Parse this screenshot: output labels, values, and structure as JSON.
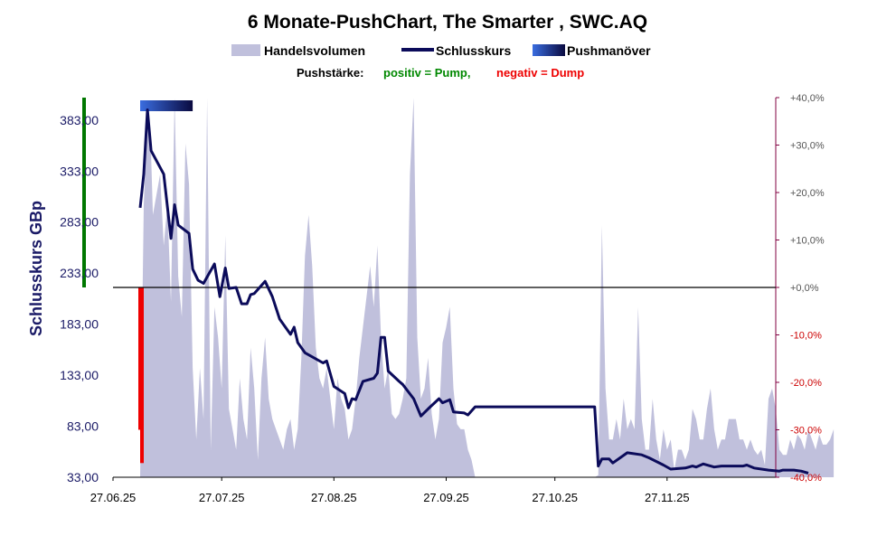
{
  "chart_data": {
    "type": "line",
    "title": "6 Monate-PushChart, The Smarter , SWC.AQ",
    "legend": {
      "volume": "Handelsvolumen",
      "close": "Schlusskurs",
      "push": "Pushmanöver"
    },
    "push_strength": {
      "prefix": "Pushstärke:",
      "positive": "positiv = Pump,",
      "negative": "negativ = Dump"
    },
    "ylabel": "Schlusskurs GBp",
    "y_left": {
      "min": 33,
      "max": 405,
      "ticks": [
        "33,00",
        "83,00",
        "133,00",
        "183,00",
        "233,00",
        "283,00",
        "333,00",
        "383,00"
      ]
    },
    "y_right": {
      "min": -40,
      "max": 40,
      "ticks": [
        {
          "label": "+40,0%",
          "value": 40
        },
        {
          "label": "+30,0%",
          "value": 30
        },
        {
          "label": "+20,0%",
          "value": 20
        },
        {
          "label": "+10,0%",
          "value": 10
        },
        {
          "label": "+0,0%",
          "value": 0
        },
        {
          "label": "-10,0%",
          "value": -10
        },
        {
          "label": "-20,0%",
          "value": -20
        },
        {
          "label": "-30,0%",
          "value": -30
        },
        {
          "label": "-40,0%",
          "value": -40
        }
      ]
    },
    "x_ticks": [
      {
        "label": "27.06.25",
        "day": 0
      },
      {
        "label": "27.07.25",
        "day": 30
      },
      {
        "label": "27.08.25",
        "day": 61
      },
      {
        "label": "27.09.25",
        "day": 92
      },
      {
        "label": "27.10.25",
        "day": 122
      },
      {
        "label": "27.11.25",
        "day": 153
      }
    ],
    "x_range_days": [
      0,
      183
    ],
    "close_series": [
      [
        7.5,
        297
      ],
      [
        8.5,
        330
      ],
      [
        9.5,
        393
      ],
      [
        10.5,
        353
      ],
      [
        14,
        330
      ],
      [
        16,
        267
      ],
      [
        17,
        300
      ],
      [
        18,
        280
      ],
      [
        21,
        272
      ],
      [
        22,
        237
      ],
      [
        23.5,
        226
      ],
      [
        25,
        223
      ],
      [
        28,
        242
      ],
      [
        29.5,
        210
      ],
      [
        31,
        238
      ],
      [
        32,
        218
      ],
      [
        34,
        219
      ],
      [
        35.5,
        203
      ],
      [
        37,
        203
      ],
      [
        38,
        212
      ],
      [
        39,
        213
      ],
      [
        42,
        225
      ],
      [
        44,
        210
      ],
      [
        46,
        188
      ],
      [
        49,
        173
      ],
      [
        50,
        180
      ],
      [
        51,
        165
      ],
      [
        53,
        155
      ],
      [
        58,
        145
      ],
      [
        59,
        147
      ],
      [
        61,
        122
      ],
      [
        64,
        115
      ],
      [
        65,
        101
      ],
      [
        66,
        110
      ],
      [
        67,
        109
      ],
      [
        69,
        127
      ],
      [
        72,
        130
      ],
      [
        73,
        135
      ],
      [
        74,
        170
      ],
      [
        75,
        170
      ],
      [
        76,
        137
      ],
      [
        79,
        127
      ],
      [
        80,
        124
      ],
      [
        83,
        110
      ],
      [
        85,
        93
      ],
      [
        87,
        100
      ],
      [
        90,
        110
      ],
      [
        91,
        106
      ],
      [
        93,
        109
      ],
      [
        94,
        97
      ],
      [
        97,
        96
      ],
      [
        98,
        94
      ],
      [
        100,
        102
      ],
      [
        133,
        102
      ],
      [
        134,
        44
      ],
      [
        135,
        51
      ],
      [
        137,
        51
      ],
      [
        138,
        47
      ],
      [
        142,
        57
      ],
      [
        146,
        55
      ],
      [
        148,
        52
      ],
      [
        152,
        45
      ],
      [
        154,
        41
      ],
      [
        158,
        42
      ],
      [
        160,
        44
      ],
      [
        161,
        43
      ],
      [
        163,
        46
      ],
      [
        166,
        43
      ],
      [
        168,
        44
      ],
      [
        170,
        44
      ],
      [
        174,
        44
      ],
      [
        175,
        45
      ],
      [
        177,
        42
      ],
      [
        181,
        40
      ],
      [
        184,
        39
      ],
      [
        185,
        40
      ],
      [
        188,
        40
      ],
      [
        190,
        39
      ],
      [
        192,
        37
      ]
    ],
    "volume_series": [
      [
        7.5,
        33
      ],
      [
        8.5,
        300
      ],
      [
        9.5,
        390
      ],
      [
        10.5,
        350
      ],
      [
        11,
        290
      ],
      [
        13,
        330
      ],
      [
        14,
        260
      ],
      [
        15,
        300
      ],
      [
        16,
        205
      ],
      [
        17,
        405
      ],
      [
        18,
        230
      ],
      [
        19,
        190
      ],
      [
        20,
        360
      ],
      [
        21,
        320
      ],
      [
        22,
        140
      ],
      [
        23,
        70
      ],
      [
        24,
        140
      ],
      [
        25,
        90
      ],
      [
        26,
        405
      ],
      [
        27,
        60
      ],
      [
        28,
        200
      ],
      [
        29,
        170
      ],
      [
        30,
        120
      ],
      [
        31,
        270
      ],
      [
        32,
        100
      ],
      [
        33,
        80
      ],
      [
        34,
        60
      ],
      [
        35,
        130
      ],
      [
        36,
        90
      ],
      [
        37,
        70
      ],
      [
        38,
        160
      ],
      [
        39,
        120
      ],
      [
        40,
        50
      ],
      [
        41,
        130
      ],
      [
        42,
        170
      ],
      [
        43,
        110
      ],
      [
        44,
        90
      ],
      [
        45,
        80
      ],
      [
        46,
        70
      ],
      [
        47,
        60
      ],
      [
        48,
        80
      ],
      [
        49,
        90
      ],
      [
        50,
        60
      ],
      [
        51,
        80
      ],
      [
        52,
        150
      ],
      [
        53,
        250
      ],
      [
        54,
        290
      ],
      [
        55,
        240
      ],
      [
        56,
        160
      ],
      [
        57,
        130
      ],
      [
        58,
        120
      ],
      [
        59,
        140
      ],
      [
        60,
        110
      ],
      [
        61,
        80
      ],
      [
        62,
        130
      ],
      [
        63,
        110
      ],
      [
        64,
        100
      ],
      [
        65,
        70
      ],
      [
        66,
        80
      ],
      [
        67,
        110
      ],
      [
        68,
        150
      ],
      [
        69,
        180
      ],
      [
        70,
        210
      ],
      [
        71,
        240
      ],
      [
        72,
        200
      ],
      [
        73,
        260
      ],
      [
        74,
        170
      ],
      [
        75,
        120
      ],
      [
        76,
        140
      ],
      [
        77,
        95
      ],
      [
        78,
        90
      ],
      [
        79,
        95
      ],
      [
        80,
        110
      ],
      [
        81,
        130
      ],
      [
        82,
        330
      ],
      [
        83,
        405
      ],
      [
        84,
        170
      ],
      [
        85,
        110
      ],
      [
        86,
        120
      ],
      [
        87,
        150
      ],
      [
        88,
        95
      ],
      [
        89,
        70
      ],
      [
        90,
        90
      ],
      [
        91,
        165
      ],
      [
        92,
        180
      ],
      [
        93,
        200
      ],
      [
        94,
        120
      ],
      [
        95,
        85
      ],
      [
        96,
        80
      ],
      [
        97,
        80
      ],
      [
        98,
        60
      ],
      [
        99,
        50
      ],
      [
        100,
        33
      ],
      [
        132,
        33
      ],
      [
        133,
        33
      ],
      [
        134,
        35
      ],
      [
        135,
        280
      ],
      [
        136,
        120
      ],
      [
        137,
        70
      ],
      [
        138,
        70
      ],
      [
        139,
        90
      ],
      [
        140,
        70
      ],
      [
        141,
        110
      ],
      [
        142,
        80
      ],
      [
        143,
        90
      ],
      [
        144,
        80
      ],
      [
        145,
        200
      ],
      [
        146,
        90
      ],
      [
        147,
        60
      ],
      [
        148,
        60
      ],
      [
        149,
        110
      ],
      [
        150,
        70
      ],
      [
        151,
        50
      ],
      [
        152,
        80
      ],
      [
        153,
        60
      ],
      [
        154,
        70
      ],
      [
        155,
        40
      ],
      [
        156,
        60
      ],
      [
        157,
        60
      ],
      [
        158,
        50
      ],
      [
        159,
        60
      ],
      [
        160,
        100
      ],
      [
        161,
        90
      ],
      [
        162,
        70
      ],
      [
        163,
        70
      ],
      [
        164,
        100
      ],
      [
        165,
        120
      ],
      [
        166,
        80
      ],
      [
        167,
        60
      ],
      [
        168,
        70
      ],
      [
        169,
        70
      ],
      [
        170,
        90
      ],
      [
        171,
        90
      ],
      [
        172,
        90
      ],
      [
        173,
        70
      ],
      [
        174,
        70
      ],
      [
        175,
        60
      ],
      [
        176,
        70
      ],
      [
        177,
        60
      ],
      [
        178,
        55
      ],
      [
        179,
        60
      ],
      [
        180,
        45
      ],
      [
        181,
        110
      ],
      [
        182,
        120
      ],
      [
        183,
        100
      ],
      [
        184,
        60
      ],
      [
        185,
        55
      ],
      [
        186,
        55
      ],
      [
        187,
        70
      ],
      [
        188,
        60
      ],
      [
        189,
        75
      ],
      [
        190,
        70
      ],
      [
        191,
        60
      ],
      [
        192,
        80
      ],
      [
        193,
        70
      ],
      [
        194,
        60
      ],
      [
        195,
        75
      ],
      [
        196,
        65
      ],
      [
        197,
        65
      ],
      [
        198,
        70
      ],
      [
        199,
        80
      ]
    ],
    "push_bars": [
      {
        "day": -8,
        "value": 40,
        "color": "#007700"
      },
      {
        "day": 7.5,
        "value": -30,
        "color": "#ee0000"
      },
      {
        "day": 8,
        "value": -37,
        "color": "#ee0000"
      }
    ],
    "push_marker": {
      "start_day": 7.5,
      "end_day": 22
    },
    "colors": {
      "volume": "#c0c0dc",
      "close": "#0b0b5a",
      "pump": "#007700",
      "dump": "#ee0000",
      "zero_line": "#000000",
      "right_axis": "#800040",
      "left_axis": "#1a1a66"
    }
  }
}
